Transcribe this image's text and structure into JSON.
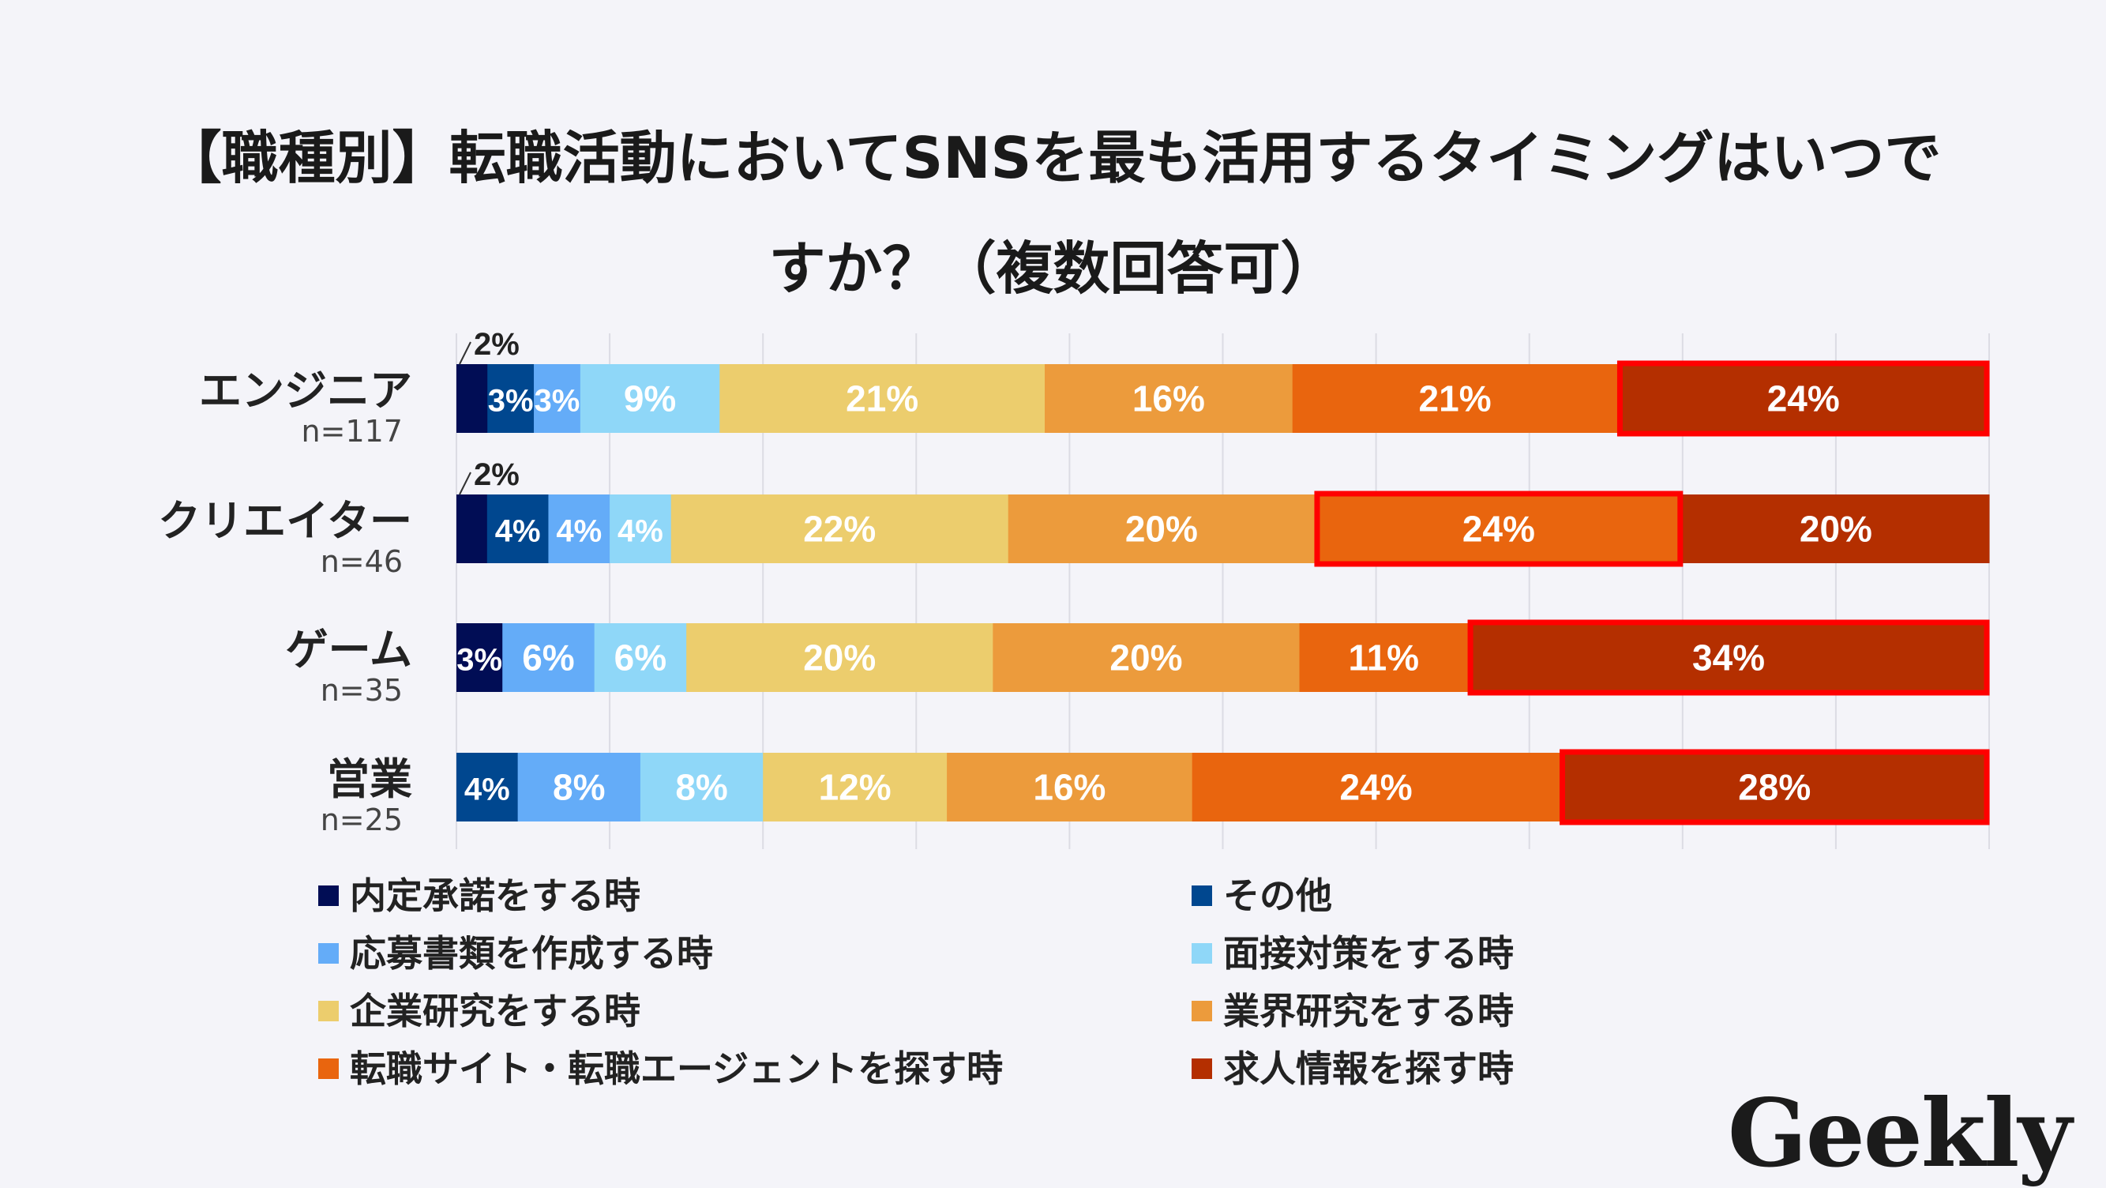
{
  "title_line1": "【職種別】転職活動においてSNSを最も活用するタイミングはいつで",
  "title_line2": "すか？（複数回答可）",
  "logo": "Geekly",
  "chart_data": {
    "type": "bar",
    "orientation": "horizontal-stacked-100",
    "xlim": [
      0,
      100
    ],
    "grid": true,
    "legend_position": "bottom",
    "categories": [
      {
        "label": "エンジニア",
        "n": "n=117",
        "highlight": 7
      },
      {
        "label": "クリエイター",
        "n": "n=46",
        "highlight": 6
      },
      {
        "label": "ゲーム",
        "n": "n=35",
        "highlight": 7
      },
      {
        "label": "営業",
        "n": "n=25",
        "highlight": 7
      }
    ],
    "series": [
      {
        "name": "内定承諾をする時",
        "color": "#010d55",
        "values": [
          2,
          2,
          3,
          0
        ]
      },
      {
        "name": "その他",
        "color": "#00478f",
        "values": [
          3,
          4,
          0,
          4
        ]
      },
      {
        "name": "応募書類を作成する時",
        "color": "#64acf8",
        "values": [
          3,
          4,
          6,
          8
        ]
      },
      {
        "name": "面接対策をする時",
        "color": "#8fd7f8",
        "values": [
          9,
          4,
          6,
          8
        ]
      },
      {
        "name": "企業研究をする時",
        "color": "#eccd6d",
        "values": [
          21,
          22,
          20,
          12
        ]
      },
      {
        "name": "業界研究をする時",
        "color": "#ec9b3c",
        "values": [
          16,
          20,
          20,
          16
        ]
      },
      {
        "name": "転職サイト・転職エージェントを探す時",
        "color": "#e9650e",
        "values": [
          21,
          24,
          11,
          24
        ]
      },
      {
        "name": "求人情報を探す時",
        "color": "#b42f00",
        "values": [
          24,
          20,
          34,
          28
        ]
      }
    ],
    "highlight_color": "#ff0000"
  }
}
